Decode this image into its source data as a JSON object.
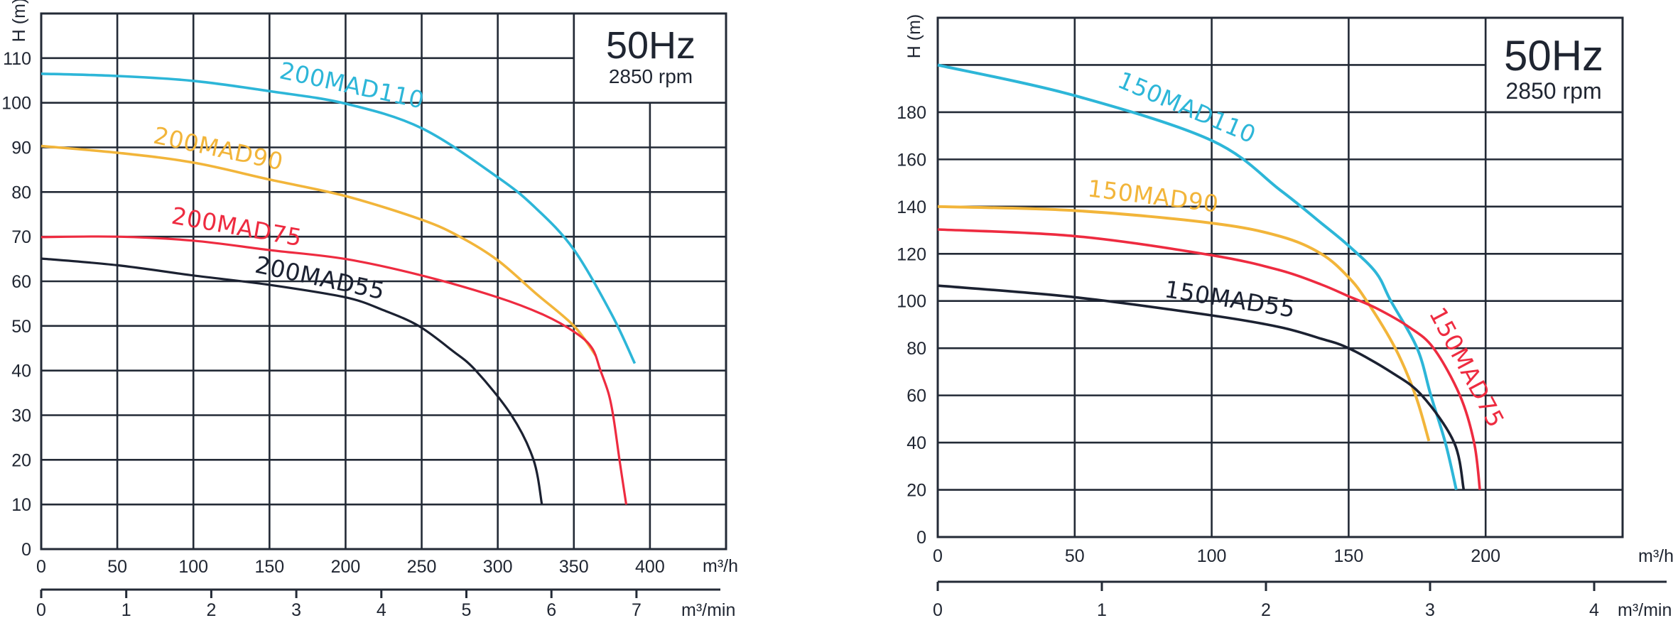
{
  "chart_data": [
    {
      "type": "line",
      "title": "",
      "frequency_label": "50Hz",
      "speed_label": "2850 rpm",
      "ylabel": "H (m)",
      "xlabel": "m³/h",
      "x2label": "m³/min",
      "xlim": [
        0,
        450
      ],
      "ylim": [
        0,
        120
      ],
      "grid": true,
      "x_ticks": [
        "0",
        "50",
        "100",
        "150",
        "200",
        "250",
        "300",
        "350",
        "400"
      ],
      "y_ticks": [
        "0",
        "10",
        "20",
        "30",
        "40",
        "50",
        "60",
        "70",
        "80",
        "90",
        "100",
        "110"
      ],
      "x2_ticks": [
        "0",
        "1",
        "2",
        "3",
        "4",
        "5",
        "6",
        "7"
      ],
      "series": [
        {
          "name": "200MAD110",
          "color": "#2db6d8",
          "points": [
            [
              0,
              106.5
            ],
            [
              50,
              106
            ],
            [
              100,
              104.9
            ],
            [
              150,
              102.6
            ],
            [
              200,
              99.8
            ],
            [
              250,
              94.3
            ],
            [
              300,
              83.3
            ],
            [
              325,
              76.4
            ],
            [
              350,
              67.1
            ],
            [
              375,
              52.5
            ],
            [
              390,
              41.6
            ]
          ]
        },
        {
          "name": "200MAD90",
          "color": "#f2b53a",
          "points": [
            [
              0,
              90.3
            ],
            [
              50,
              88.8
            ],
            [
              100,
              86.6
            ],
            [
              150,
              82.8
            ],
            [
              200,
              79.1
            ],
            [
              250,
              73.8
            ],
            [
              275,
              70
            ],
            [
              300,
              64.7
            ],
            [
              325,
              57.3
            ],
            [
              350,
              50
            ],
            [
              364.5,
              43.3
            ]
          ]
        },
        {
          "name": "200MAD75",
          "color": "#ee2b40",
          "points": [
            [
              0,
              69.9
            ],
            [
              50,
              70
            ],
            [
              100,
              69.1
            ],
            [
              150,
              67
            ],
            [
              200,
              65
            ],
            [
              250,
              61.3
            ],
            [
              300,
              56.4
            ],
            [
              330,
              52.5
            ],
            [
              351,
              48.5
            ],
            [
              362,
              45
            ],
            [
              367.5,
              40
            ],
            [
              372.7,
              35
            ],
            [
              375.8,
              30
            ],
            [
              380,
              20
            ],
            [
              384.4,
              10
            ]
          ]
        },
        {
          "name": "200MAD55",
          "color": "#1b2131",
          "points": [
            [
              0,
              65.1
            ],
            [
              50,
              63.6
            ],
            [
              100,
              61.3
            ],
            [
              150,
              59.2
            ],
            [
              200,
              56.4
            ],
            [
              225,
              53.5
            ],
            [
              248,
              50
            ],
            [
              270,
              44.5
            ],
            [
              285.6,
              40
            ],
            [
              309,
              30
            ],
            [
              323.5,
              20
            ],
            [
              329,
              10
            ]
          ]
        }
      ]
    },
    {
      "type": "line",
      "title": "",
      "frequency_label": "50Hz",
      "speed_label": "2850 rpm",
      "ylabel": "H (m)",
      "xlabel": "m³/h",
      "x2label": "m³/min",
      "xlim": [
        0,
        250
      ],
      "ylim": [
        0,
        220
      ],
      "grid": true,
      "x_ticks": [
        "0",
        "50",
        "100",
        "150",
        "200"
      ],
      "y_ticks": [
        "0",
        "20",
        "40",
        "60",
        "80",
        "100",
        "120",
        "140",
        "160",
        "180"
      ],
      "x2_ticks": [
        "0",
        "1",
        "2",
        "3",
        "4"
      ],
      "series": [
        {
          "name": "150MAD110",
          "color": "#2db6d8",
          "points": [
            [
              0,
              200
            ],
            [
              50,
              187
            ],
            [
              100,
              168
            ],
            [
              125,
              147
            ],
            [
              140,
              133
            ],
            [
              150,
              123.4
            ],
            [
              160,
              112
            ],
            [
              165.4,
              100
            ],
            [
              175,
              80
            ],
            [
              180,
              60
            ],
            [
              185.3,
              40
            ],
            [
              189.3,
              20
            ]
          ]
        },
        {
          "name": "150MAD90",
          "color": "#f2b53a",
          "points": [
            [
              0,
              140
            ],
            [
              50,
              138.3
            ],
            [
              100,
              133
            ],
            [
              125,
              127.4
            ],
            [
              140,
              120
            ],
            [
              150,
              110
            ],
            [
              156.6,
              100
            ],
            [
              167,
              80
            ],
            [
              174.4,
              60
            ],
            [
              179.3,
              40.7
            ]
          ]
        },
        {
          "name": "150MAD75",
          "color": "#ee2b40",
          "points": [
            [
              0,
              130.3
            ],
            [
              50,
              127.5
            ],
            [
              100,
              119.4
            ],
            [
              125,
              113
            ],
            [
              140,
              107
            ],
            [
              150,
              102
            ],
            [
              160,
              97
            ],
            [
              172,
              89
            ],
            [
              181,
              80
            ],
            [
              190.6,
              60
            ],
            [
              195.8,
              40
            ],
            [
              197.9,
              20
            ]
          ]
        },
        {
          "name": "150MAD55",
          "color": "#1b2131",
          "points": [
            [
              0,
              106.5
            ],
            [
              50,
              101.6
            ],
            [
              100,
              93.9
            ],
            [
              125,
              88.9
            ],
            [
              140,
              84
            ],
            [
              150,
              80
            ],
            [
              165.3,
              70
            ],
            [
              176.7,
              60
            ],
            [
              188.5,
              40
            ],
            [
              192,
              20
            ]
          ]
        }
      ]
    }
  ]
}
